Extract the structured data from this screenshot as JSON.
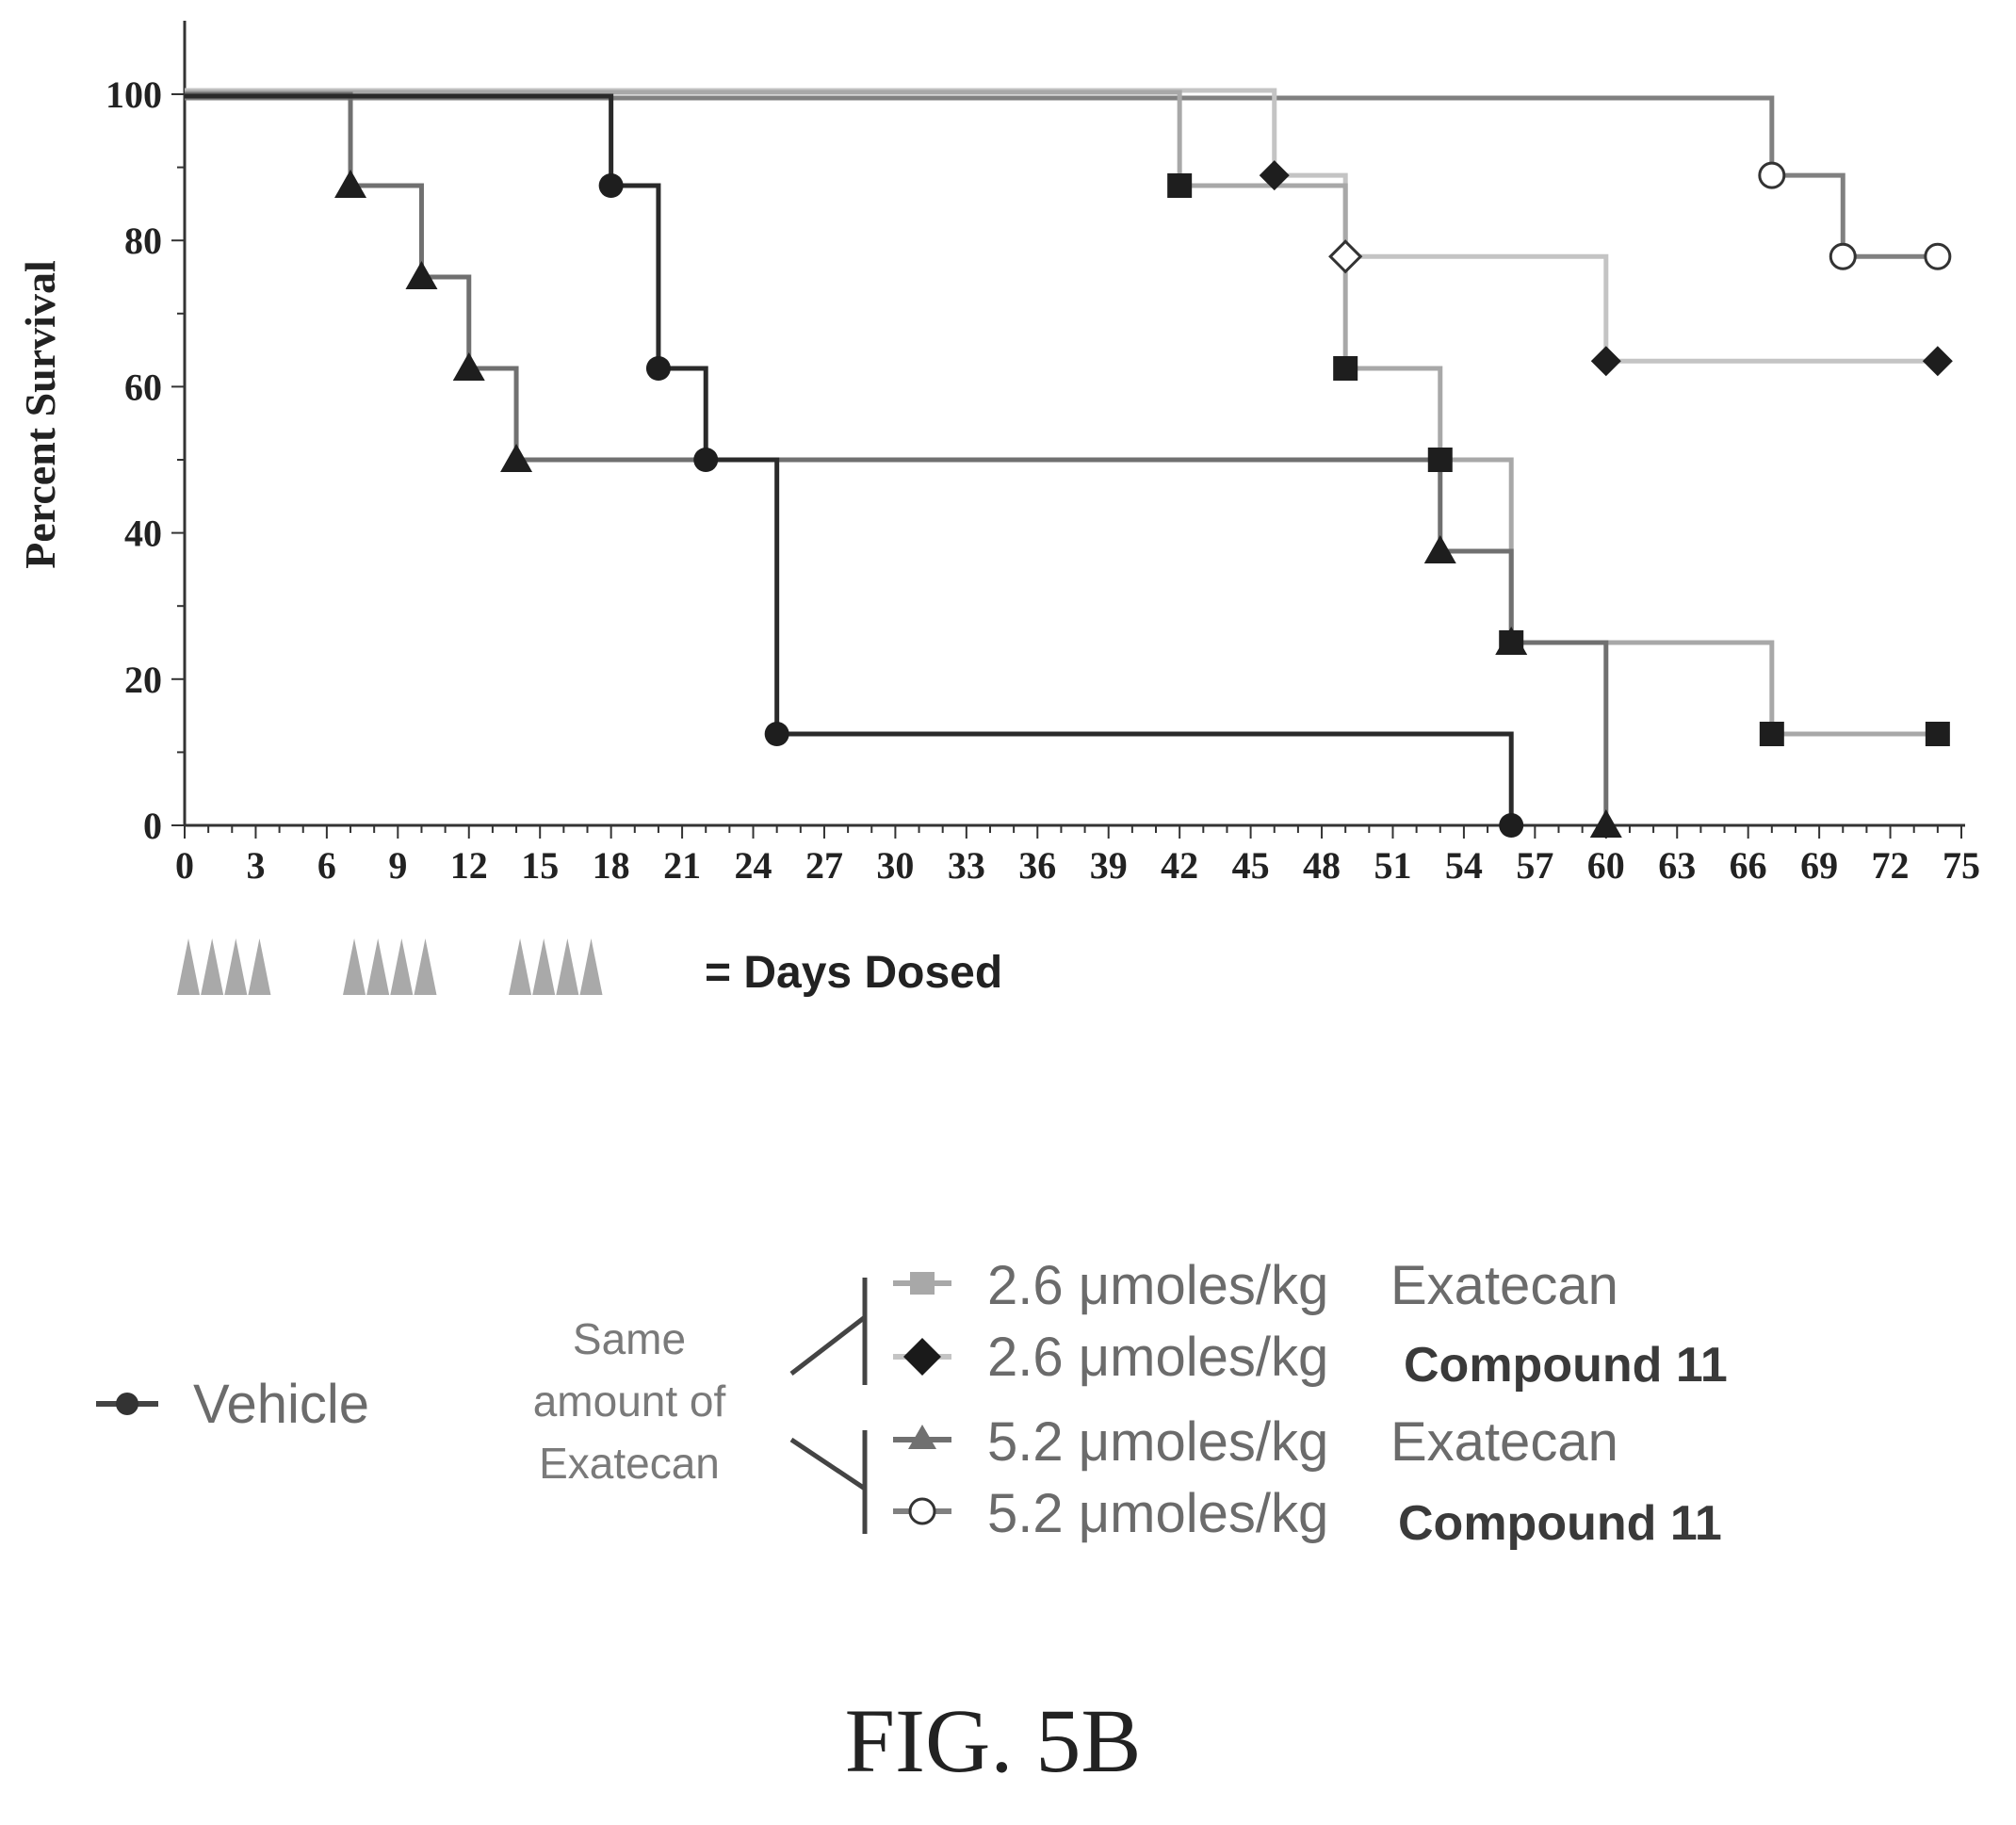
{
  "chart_data": {
    "type": "line",
    "subtype": "kaplan-meier survival (step)",
    "xlabel": "",
    "ylabel": "Percent Survival",
    "xlim": [
      0,
      75
    ],
    "ylim": [
      0,
      100
    ],
    "x_ticks": [
      "0",
      "3",
      "6",
      "9",
      "12",
      "15",
      "18",
      "21",
      "24",
      "27",
      "30",
      "33",
      "36",
      "39",
      "42",
      "45",
      "48",
      "51",
      "54",
      "57",
      "60",
      "63",
      "66",
      "69",
      "72",
      "75"
    ],
    "y_ticks": [
      "0",
      "20",
      "40",
      "60",
      "80",
      "100"
    ],
    "series": [
      {
        "name": "Vehicle",
        "marker": "circle-filled",
        "color": "#2a2a2a",
        "steps": [
          [
            0,
            100
          ],
          [
            18,
            87.5
          ],
          [
            20,
            62.5
          ],
          [
            22,
            50
          ],
          [
            25,
            12.5
          ],
          [
            56,
            0
          ]
        ],
        "markers": [
          [
            18,
            87.5
          ],
          [
            20,
            62.5
          ],
          [
            22,
            50
          ],
          [
            25,
            12.5
          ],
          [
            56,
            0
          ]
        ]
      },
      {
        "name": "2.6 μmoles/kg Exatecan",
        "marker": "square-filled",
        "color": "#a8a8a8",
        "steps": [
          [
            0,
            100
          ],
          [
            42,
            87.5
          ],
          [
            49,
            62.5
          ],
          [
            53,
            50
          ],
          [
            56,
            25
          ],
          [
            67,
            12.5
          ],
          [
            74,
            12.5
          ]
        ],
        "markers": [
          [
            42,
            87.5
          ],
          [
            49,
            62.5
          ],
          [
            53,
            50
          ],
          [
            56,
            25
          ],
          [
            67,
            12.5
          ],
          [
            74,
            12.5
          ]
        ]
      },
      {
        "name": "2.6 μmoles/kg Compound 11",
        "marker": "diamond-filled",
        "color": "#c4c4c4",
        "steps": [
          [
            0,
            100
          ],
          [
            46,
            88.9
          ],
          [
            49,
            77.8
          ],
          [
            60,
            63.5
          ],
          [
            74,
            63.5
          ]
        ],
        "markers": [
          [
            46,
            88.9
          ],
          [
            49,
            77.8
          ],
          [
            60,
            63.5
          ],
          [
            74,
            63.5
          ]
        ],
        "open_markers": [
          1
        ]
      },
      {
        "name": "5.2 μmoles/kg Exatecan",
        "marker": "triangle-filled",
        "color": "#707070",
        "steps": [
          [
            0,
            100
          ],
          [
            7,
            87.5
          ],
          [
            10,
            75
          ],
          [
            12,
            62.5
          ],
          [
            14,
            50
          ],
          [
            53,
            37.5
          ],
          [
            56,
            25
          ],
          [
            60,
            0
          ]
        ],
        "markers": [
          [
            7,
            87.5
          ],
          [
            10,
            75
          ],
          [
            12,
            62.5
          ],
          [
            14,
            50
          ],
          [
            53,
            37.5
          ],
          [
            56,
            25
          ],
          [
            60,
            0
          ]
        ]
      },
      {
        "name": "5.2 μmoles/kg Compound 11",
        "marker": "circle-open",
        "color": "#808080",
        "steps": [
          [
            0,
            100
          ],
          [
            67,
            88.9
          ],
          [
            70,
            77.8
          ],
          [
            74,
            77.8
          ]
        ],
        "markers": [
          [
            67,
            88.9
          ],
          [
            70,
            77.8
          ],
          [
            74,
            77.8
          ]
        ]
      }
    ],
    "dose_days": [
      0,
      1,
      2,
      3,
      7,
      8,
      9,
      10,
      14,
      15,
      16,
      17
    ],
    "grid": false
  },
  "dosing": {
    "label": "= Days Dosed"
  },
  "legend": {
    "vehicle": "Vehicle",
    "group_label_lines": [
      "Same",
      "amount of",
      "Exatecan"
    ],
    "entries": [
      {
        "dose": "2.6 μmoles/kg",
        "name": "Exatecan"
      },
      {
        "dose": "2.6 μmoles/kg",
        "name": "Compound 11"
      },
      {
        "dose": "5.2 μmoles/kg",
        "name": "Exatecan"
      },
      {
        "dose": "5.2 μmoles/kg",
        "name": "Compound 11"
      }
    ]
  },
  "figure_label": "FIG. 5B"
}
